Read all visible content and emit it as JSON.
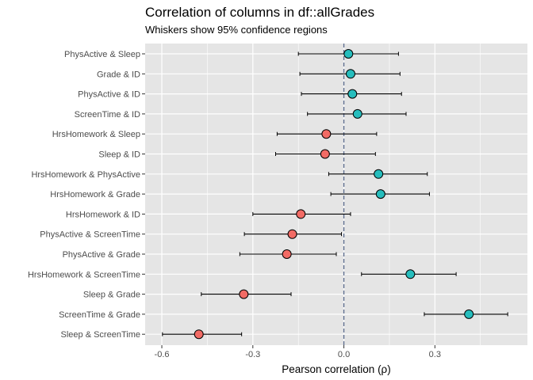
{
  "chart_data": {
    "type": "scatter",
    "subtype": "dot-and-whisker",
    "title": "Correlation of columns in df::allGrades",
    "subtitle": "Whiskers show 95% confidence regions",
    "xlabel": "Pearson correlation (ρ)",
    "ylabel": "",
    "xlim": [
      -0.655,
      0.605
    ],
    "xticks": [
      -0.6,
      -0.3,
      0.0,
      0.3
    ],
    "xtick_labels": [
      "-0.6",
      "-0.3",
      "0.0",
      "0.3"
    ],
    "reference_line": 0,
    "grid": true,
    "legend": "none",
    "colors": {
      "positive": "#26BDBD",
      "negative": "#F26B65",
      "panel": "#E5E5E5",
      "grid": "#FFFFFF",
      "refline": "#5A6B8C"
    },
    "categories": [
      "PhysActive & Sleep",
      "Grade & ID",
      "PhysActive & ID",
      "ScreenTime & ID",
      "HrsHomework & Sleep",
      "Sleep & ID",
      "HrsHomework & PhysActive",
      "HrsHomework & Grade",
      "HrsHomework & ID",
      "PhysActive & ScreenTime",
      "PhysActive & Grade",
      "HrsHomework & ScreenTime",
      "Sleep & Grade",
      "ScreenTime & Grade",
      "Sleep & ScreenTime"
    ],
    "points": [
      {
        "label": "PhysActive & Sleep",
        "r": 0.015,
        "lower": -0.15,
        "upper": 0.18
      },
      {
        "label": "Grade & ID",
        "r": 0.022,
        "lower": -0.145,
        "upper": 0.185
      },
      {
        "label": "PhysActive & ID",
        "r": 0.028,
        "lower": -0.14,
        "upper": 0.19
      },
      {
        "label": "ScreenTime & ID",
        "r": 0.045,
        "lower": -0.12,
        "upper": 0.205
      },
      {
        "label": "HrsHomework & Sleep",
        "r": -0.058,
        "lower": -0.22,
        "upper": 0.108
      },
      {
        "label": "Sleep & ID",
        "r": -0.062,
        "lower": -0.225,
        "upper": 0.104
      },
      {
        "label": "HrsHomework & PhysActive",
        "r": 0.114,
        "lower": -0.05,
        "upper": 0.275
      },
      {
        "label": "HrsHomework & Grade",
        "r": 0.121,
        "lower": -0.043,
        "upper": 0.282
      },
      {
        "label": "HrsHomework & ID",
        "r": -0.142,
        "lower": -0.3,
        "upper": 0.022
      },
      {
        "label": "PhysActive & ScreenTime",
        "r": -0.17,
        "lower": -0.328,
        "upper": -0.008
      },
      {
        "label": "PhysActive & Grade",
        "r": -0.188,
        "lower": -0.343,
        "upper": -0.025
      },
      {
        "label": "HrsHomework & ScreenTime",
        "r": 0.219,
        "lower": 0.058,
        "upper": 0.37
      },
      {
        "label": "Sleep & Grade",
        "r": -0.33,
        "lower": -0.47,
        "upper": -0.174
      },
      {
        "label": "ScreenTime & Grade",
        "r": 0.412,
        "lower": 0.265,
        "upper": 0.54
      },
      {
        "label": "Sleep & ScreenTime",
        "r": -0.478,
        "lower": -0.598,
        "upper": -0.337
      }
    ]
  }
}
